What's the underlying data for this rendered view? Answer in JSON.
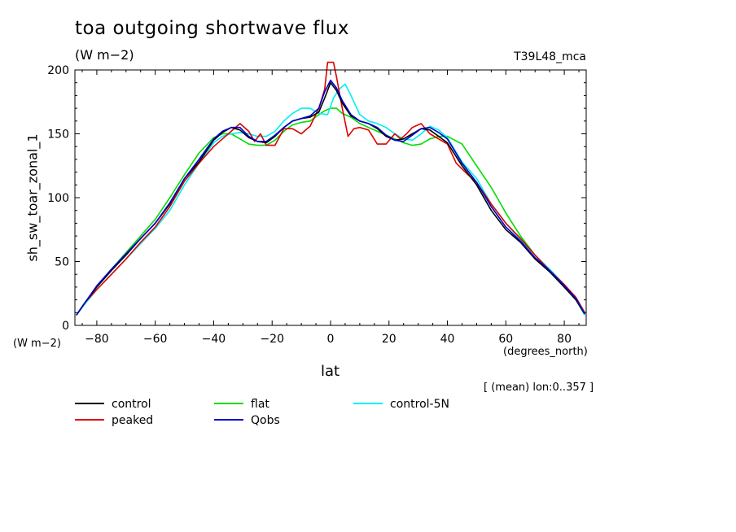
{
  "header": {
    "title": "toa outgoing shortwave flux",
    "units": "(W m−2)",
    "experiment": "T39L48_mca"
  },
  "axes": {
    "y_unit_label": "(W m−2)",
    "x_unit_label": "(degrees_north)",
    "averaging_note": "[ (mean) lon:0..357 ]"
  },
  "colors": {
    "control": "#000000",
    "peaked": "#e00000",
    "flat": "#00dd00",
    "Qobs": "#0000cc",
    "control-5N": "#00f0f0"
  },
  "chart_data": {
    "type": "line",
    "title": "toa outgoing shortwave flux",
    "xlabel": "lat",
    "ylabel": "sh_sw_toar_zonal_1",
    "xlim": [
      -87.5,
      87.5
    ],
    "ylim": [
      0,
      200
    ],
    "xticks": [
      -80,
      -60,
      -40,
      -20,
      0,
      20,
      40,
      60,
      80
    ],
    "yticks": [
      0,
      50,
      100,
      150,
      200
    ],
    "xticklabels": [
      "−80",
      "−60",
      "−40",
      "−20",
      "0",
      "20",
      "40",
      "60",
      "80"
    ],
    "yticklabels": [
      "0",
      "50",
      "100",
      "150",
      "200"
    ],
    "legend": [
      "control",
      "peaked",
      "flat",
      "Qobs",
      "control-5N"
    ],
    "series": [
      {
        "name": "control",
        "x": [
          -87,
          -84,
          -80,
          -75,
          -70,
          -65,
          -60,
          -55,
          -50,
          -45,
          -40,
          -37,
          -34,
          -31,
          -28,
          -25,
          -22,
          -19,
          -16,
          -13,
          -10,
          -7,
          -4,
          -2,
          0,
          2,
          4,
          7,
          10,
          13,
          16,
          19,
          22,
          25,
          28,
          31,
          34,
          37,
          40,
          45,
          50,
          55,
          60,
          65,
          70,
          75,
          80,
          84,
          87
        ],
        "y": [
          8,
          18,
          30,
          43,
          55,
          68,
          80,
          95,
          115,
          128,
          145,
          151,
          155,
          153,
          147,
          144,
          143,
          148,
          155,
          160,
          162,
          163,
          167,
          178,
          190,
          184,
          174,
          164,
          160,
          158,
          154,
          148,
          145,
          146,
          150,
          154,
          153,
          148,
          143,
          125,
          110,
          90,
          75,
          65,
          52,
          42,
          30,
          20,
          9
        ]
      },
      {
        "name": "peaked",
        "x": [
          -87,
          -84,
          -80,
          -75,
          -70,
          -65,
          -60,
          -55,
          -50,
          -45,
          -40,
          -37,
          -34,
          -31,
          -28,
          -26,
          -24,
          -22,
          -19,
          -16,
          -13,
          -10,
          -7,
          -4,
          -2,
          -1,
          1,
          2,
          4,
          6,
          8,
          10,
          13,
          16,
          19,
          22,
          24,
          26,
          28,
          31,
          34,
          37,
          40,
          43,
          47,
          50,
          55,
          60,
          65,
          70,
          75,
          80,
          84,
          87
        ],
        "y": [
          8,
          18,
          28,
          40,
          52,
          65,
          77,
          93,
          113,
          127,
          140,
          146,
          152,
          158,
          152,
          144,
          150,
          141,
          141,
          154,
          154,
          150,
          156,
          170,
          185,
          206,
          206,
          195,
          170,
          148,
          154,
          155,
          153,
          142,
          142,
          150,
          146,
          150,
          155,
          158,
          150,
          146,
          142,
          127,
          118,
          112,
          95,
          80,
          68,
          55,
          43,
          32,
          22,
          10
        ]
      },
      {
        "name": "flat",
        "x": [
          -87,
          -84,
          -80,
          -75,
          -70,
          -65,
          -60,
          -55,
          -50,
          -45,
          -40,
          -37,
          -34,
          -31,
          -28,
          -25,
          -22,
          -19,
          -16,
          -13,
          -10,
          -7,
          -4,
          -2,
          0,
          2,
          4,
          7,
          10,
          13,
          16,
          19,
          22,
          25,
          28,
          31,
          34,
          37,
          40,
          45,
          50,
          55,
          60,
          65,
          70,
          75,
          80,
          84,
          87
        ],
        "y": [
          8,
          18,
          30,
          44,
          57,
          70,
          83,
          100,
          118,
          135,
          147,
          150,
          150,
          146,
          142,
          141,
          141,
          145,
          152,
          157,
          159,
          160,
          165,
          168,
          170,
          170,
          166,
          163,
          158,
          155,
          152,
          149,
          146,
          143,
          141,
          142,
          146,
          148,
          148,
          142,
          125,
          108,
          88,
          70,
          55,
          42,
          30,
          20,
          8
        ]
      },
      {
        "name": "Qobs",
        "x": [
          -87,
          -84,
          -80,
          -75,
          -70,
          -65,
          -60,
          -55,
          -50,
          -45,
          -40,
          -37,
          -34,
          -31,
          -28,
          -25,
          -22,
          -19,
          -16,
          -13,
          -10,
          -7,
          -4,
          -2,
          0,
          2,
          4,
          7,
          10,
          13,
          16,
          19,
          22,
          25,
          28,
          31,
          34,
          37,
          40,
          45,
          50,
          55,
          60,
          65,
          70,
          75,
          80,
          84,
          87
        ],
        "y": [
          8,
          18,
          31,
          44,
          56,
          68,
          80,
          96,
          115,
          130,
          146,
          152,
          155,
          155,
          148,
          144,
          144,
          149,
          155,
          160,
          162,
          164,
          170,
          183,
          192,
          186,
          176,
          165,
          160,
          158,
          155,
          149,
          145,
          144,
          149,
          154,
          155,
          151,
          146,
          127,
          112,
          93,
          77,
          66,
          53,
          43,
          31,
          21,
          9
        ]
      },
      {
        "name": "control-5N",
        "x": [
          -87,
          -84,
          -80,
          -75,
          -70,
          -65,
          -60,
          -55,
          -50,
          -45,
          -40,
          -37,
          -34,
          -31,
          -28,
          -25,
          -22,
          -19,
          -16,
          -13,
          -10,
          -7,
          -4,
          -1,
          1,
          3,
          5,
          7,
          10,
          13,
          16,
          19,
          22,
          25,
          28,
          31,
          34,
          37,
          40,
          45,
          50,
          55,
          60,
          65,
          70,
          75,
          80,
          84,
          87
        ],
        "y": [
          8,
          17,
          28,
          40,
          52,
          64,
          76,
          90,
          110,
          127,
          143,
          148,
          150,
          151,
          150,
          148,
          148,
          152,
          160,
          166,
          170,
          170,
          166,
          165,
          178,
          185,
          189,
          180,
          165,
          160,
          158,
          155,
          150,
          146,
          145,
          150,
          156,
          153,
          147,
          128,
          115,
          95,
          80,
          67,
          55,
          44,
          32,
          21,
          8
        ]
      }
    ]
  }
}
